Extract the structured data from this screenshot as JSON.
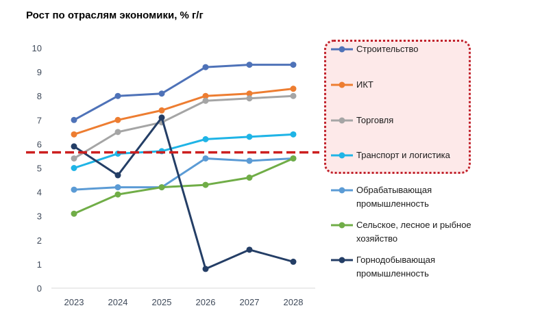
{
  "chart_data": {
    "type": "line",
    "title": "Рост по отраслям экономики, % г/г",
    "x": [
      "2023",
      "2024",
      "2025",
      "2026",
      "2027",
      "2028"
    ],
    "ylim": [
      0,
      10
    ],
    "yticks": [
      "0",
      "1",
      "2",
      "3",
      "4",
      "5",
      "6",
      "7",
      "8",
      "9",
      "10"
    ],
    "grid": false,
    "legend_position": "right",
    "reference_line": {
      "value": 5.65,
      "color": "#cc1f1f",
      "style": "dashed"
    },
    "highlight_box": {
      "series_covered": 4,
      "color": "#c0202a",
      "fill": "#fde9e9"
    },
    "series": [
      {
        "name": "Строительство",
        "color": "#4e72b8",
        "values": [
          7.0,
          8.0,
          8.1,
          9.2,
          9.3,
          9.3
        ]
      },
      {
        "name": "ИКТ",
        "color": "#ed7d31",
        "values": [
          6.4,
          7.0,
          7.4,
          8.0,
          8.1,
          8.3
        ]
      },
      {
        "name": "Торговля",
        "color": "#a5a5a5",
        "values": [
          5.4,
          6.5,
          6.9,
          7.8,
          7.9,
          8.0
        ]
      },
      {
        "name": "Транспорт и логистика",
        "color": "#1fb4e6",
        "values": [
          5.0,
          5.6,
          5.7,
          6.2,
          6.3,
          6.4
        ]
      },
      {
        "name": "Обрабатывающая промышленность",
        "lines": [
          "Обрабатывающая",
          "промышленность"
        ],
        "color": "#5b9bd5",
        "values": [
          4.1,
          4.2,
          4.2,
          5.4,
          5.3,
          5.4
        ]
      },
      {
        "name": "Сельское, лесное и рыбное хозяйство",
        "lines": [
          "Сельское, лесное и рыбное",
          "хозяйство"
        ],
        "color": "#70ad47",
        "values": [
          3.1,
          3.9,
          4.2,
          4.3,
          4.6,
          5.4
        ]
      },
      {
        "name": "Горнодобывающая промышленность",
        "lines": [
          "Горнодобывающая",
          "промышленность"
        ],
        "color": "#243e66",
        "values": [
          5.9,
          4.7,
          7.1,
          0.8,
          1.6,
          1.1
        ]
      }
    ]
  }
}
